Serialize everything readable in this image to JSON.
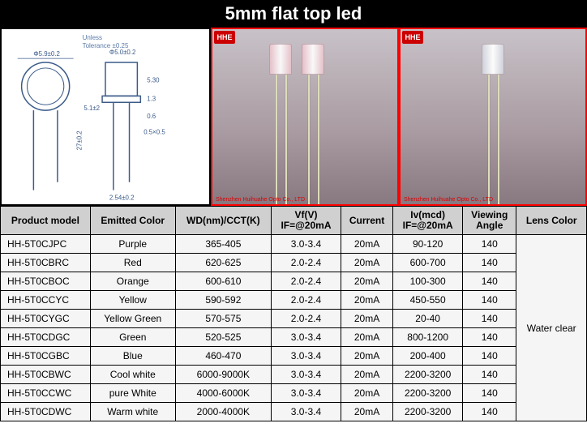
{
  "title": "5mm flat top led",
  "tolerance": {
    "line1": "Unless",
    "line2": "Tolerance ±0.25"
  },
  "diagram_labels": {
    "top_circle_dim": "Φ5.9±0.2",
    "top_side_dim": "Φ5.0±0.2",
    "body_h": "5.30",
    "flange_h": "1.3",
    "lead_pitch": "2.54±0.2",
    "lead_w": "0.5×0.5",
    "overall_h": "27±0.2",
    "body_top": "5.1±2"
  },
  "photo_logo": "HHE",
  "photo_footer": "Shenzhen Huihuahe Opto Co., LTD",
  "table": {
    "columns": [
      "Product model",
      "Emitted Color",
      "WD(nm)/CCT(K)",
      "Vf(V)\nIF=@20mA",
      "Current",
      "Iv(mcd)\nIF=@20mA",
      "Viewing\nAngle",
      "Lens Color"
    ],
    "rows": [
      [
        "HH-5T0CJPC",
        "Purple",
        "365-405",
        "3.0-3.4",
        "20mA",
        "90-120",
        "140"
      ],
      [
        "HH-5T0CBRC",
        "Red",
        "620-625",
        "2.0-2.4",
        "20mA",
        "600-700",
        "140"
      ],
      [
        "HH-5T0CBOC",
        "Orange",
        "600-610",
        "2.0-2.4",
        "20mA",
        "100-300",
        "140"
      ],
      [
        "HH-5T0CCYC",
        "Yellow",
        "590-592",
        "2.0-2.4",
        "20mA",
        "450-550",
        "140"
      ],
      [
        "HH-5T0CYGC",
        "Yellow Green",
        "570-575",
        "2.0-2.4",
        "20mA",
        "20-40",
        "140"
      ],
      [
        "HH-5T0CDGC",
        "Green",
        "520-525",
        "3.0-3.4",
        "20mA",
        "800-1200",
        "140"
      ],
      [
        "HH-5T0CGBC",
        "Blue",
        "460-470",
        "3.0-3.4",
        "20mA",
        "200-400",
        "140"
      ],
      [
        "HH-5T0CBWC",
        "Cool white",
        "6000-9000K",
        "3.0-3.4",
        "20mA",
        "2200-3200",
        "140"
      ],
      [
        "HH-5T0CCWC",
        "pure White",
        "4000-6000K",
        "3.0-3.4",
        "20mA",
        "2200-3200",
        "140"
      ],
      [
        "HH-5T0CDWC",
        "Warm white",
        "2000-4000K",
        "3.0-3.4",
        "20mA",
        "2200-3200",
        "140"
      ]
    ],
    "lens_color": "Water clear",
    "header_bg": "#d0d0d0",
    "row_bg": "#f5f5f5",
    "border_color": "#000000"
  }
}
